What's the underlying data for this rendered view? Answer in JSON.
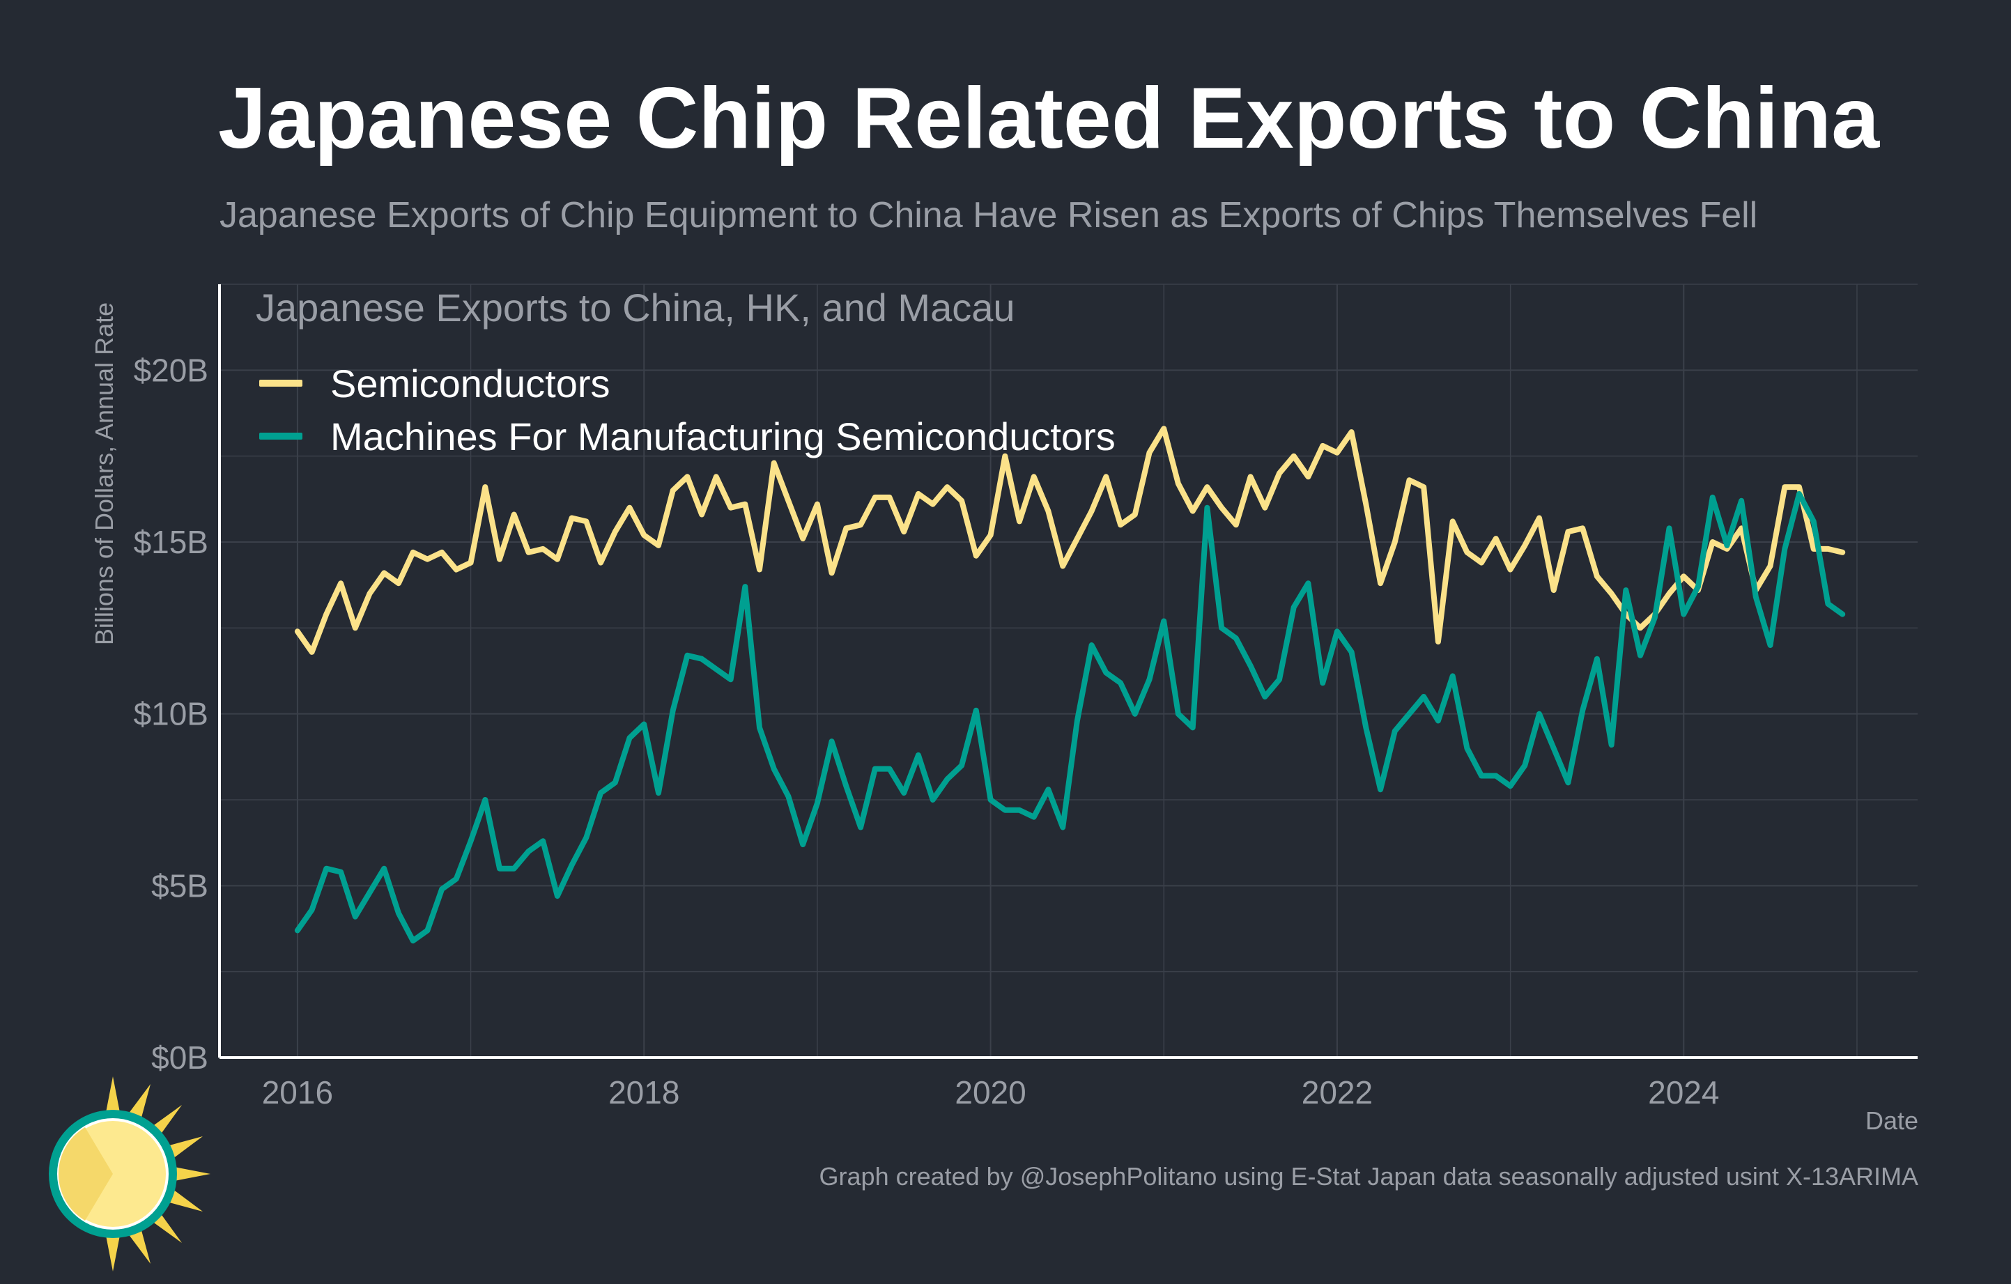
{
  "title": "Japanese Chip Related Exports to China",
  "subtitle": "Japanese Exports of Chip Equipment to China Have Risen as Exports of Chips Themselves Fell",
  "caption": "Graph created by @JosephPolitano using E-Stat Japan data seasonally adjusted usint X-13ARIMA",
  "colors": {
    "background": "#252a33",
    "grid": "#3b404a",
    "axis": "#ffffff",
    "semiconductors": "#fbe28a",
    "machines": "#00a091"
  },
  "chart_data": {
    "type": "line",
    "title": "Japanese Exports to China, HK, and Macau",
    "xlabel": "Date",
    "ylabel": "Billions of Dollars, Annual Rate",
    "xlim": [
      2015.55,
      2025.35
    ],
    "ylim": [
      0,
      22.5
    ],
    "x_ticks": [
      2016,
      2018,
      2020,
      2022,
      2024
    ],
    "x_tick_labels": [
      "2016",
      "2018",
      "2020",
      "2022",
      "2024"
    ],
    "y_ticks": [
      0,
      5,
      10,
      15,
      20
    ],
    "y_tick_labels": [
      "$0B",
      "$5B",
      "$10B",
      "$15B",
      "$20B"
    ],
    "grid": true,
    "legend_position": "top-left",
    "x_start": 2016,
    "x_step": 0.08333,
    "series": [
      {
        "name": "Semiconductors",
        "color": "#fbe28a",
        "values": [
          12.4,
          11.8,
          12.9,
          13.8,
          12.5,
          13.5,
          14.1,
          13.8,
          14.7,
          14.5,
          14.7,
          14.2,
          14.4,
          16.6,
          14.5,
          15.8,
          14.7,
          14.8,
          14.5,
          15.7,
          15.6,
          14.4,
          15.3,
          16.0,
          15.2,
          14.9,
          16.5,
          16.9,
          15.8,
          16.9,
          16.0,
          16.1,
          14.2,
          17.3,
          16.2,
          15.1,
          16.1,
          14.1,
          15.4,
          15.5,
          16.3,
          16.3,
          15.3,
          16.4,
          16.1,
          16.6,
          16.2,
          14.6,
          15.2,
          17.5,
          15.6,
          16.9,
          15.9,
          14.3,
          15.1,
          15.9,
          16.9,
          15.5,
          15.8,
          17.6,
          18.3,
          16.7,
          15.9,
          16.6,
          16.0,
          15.5,
          16.9,
          16.0,
          17.0,
          17.5,
          16.9,
          17.8,
          17.6,
          18.2,
          16.1,
          13.8,
          15.0,
          16.8,
          16.6,
          12.1,
          15.6,
          14.7,
          14.4,
          15.1,
          14.2,
          14.9,
          15.7,
          13.6,
          15.3,
          15.4,
          14.0,
          13.5,
          12.9,
          12.5,
          12.9,
          13.5,
          14.0,
          13.6,
          15.0,
          14.8,
          15.4,
          13.6,
          14.3,
          16.6,
          16.6,
          14.8,
          14.8,
          14.7
        ]
      },
      {
        "name": "Machines For Manufacturing Semiconductors",
        "color": "#00a091",
        "values": [
          3.7,
          4.3,
          5.5,
          5.4,
          4.1,
          4.8,
          5.5,
          4.2,
          3.4,
          3.7,
          4.9,
          5.2,
          6.3,
          7.5,
          5.5,
          5.5,
          6.0,
          6.3,
          4.7,
          5.6,
          6.4,
          7.7,
          8.0,
          9.3,
          9.7,
          7.7,
          10.1,
          11.7,
          11.6,
          11.3,
          11.0,
          13.7,
          9.6,
          8.4,
          7.6,
          6.2,
          7.4,
          9.2,
          7.9,
          6.7,
          8.4,
          8.4,
          7.7,
          8.8,
          7.5,
          8.1,
          8.5,
          10.1,
          7.5,
          7.2,
          7.2,
          7.0,
          7.8,
          6.7,
          9.8,
          12.0,
          11.2,
          10.9,
          10.0,
          11.0,
          12.7,
          10.0,
          9.6,
          16.0,
          12.5,
          12.2,
          11.4,
          10.5,
          11.0,
          13.1,
          13.8,
          10.9,
          12.4,
          11.8,
          9.6,
          7.8,
          9.5,
          10.0,
          10.5,
          9.8,
          11.1,
          9.0,
          8.2,
          8.2,
          7.9,
          8.5,
          10.0,
          9.0,
          8.0,
          10.1,
          11.6,
          9.1,
          13.6,
          11.7,
          12.8,
          15.4,
          12.9,
          13.7,
          16.3,
          14.9,
          16.2,
          13.4,
          12.0,
          14.8,
          16.4,
          15.6,
          13.2,
          12.9
        ]
      }
    ]
  }
}
